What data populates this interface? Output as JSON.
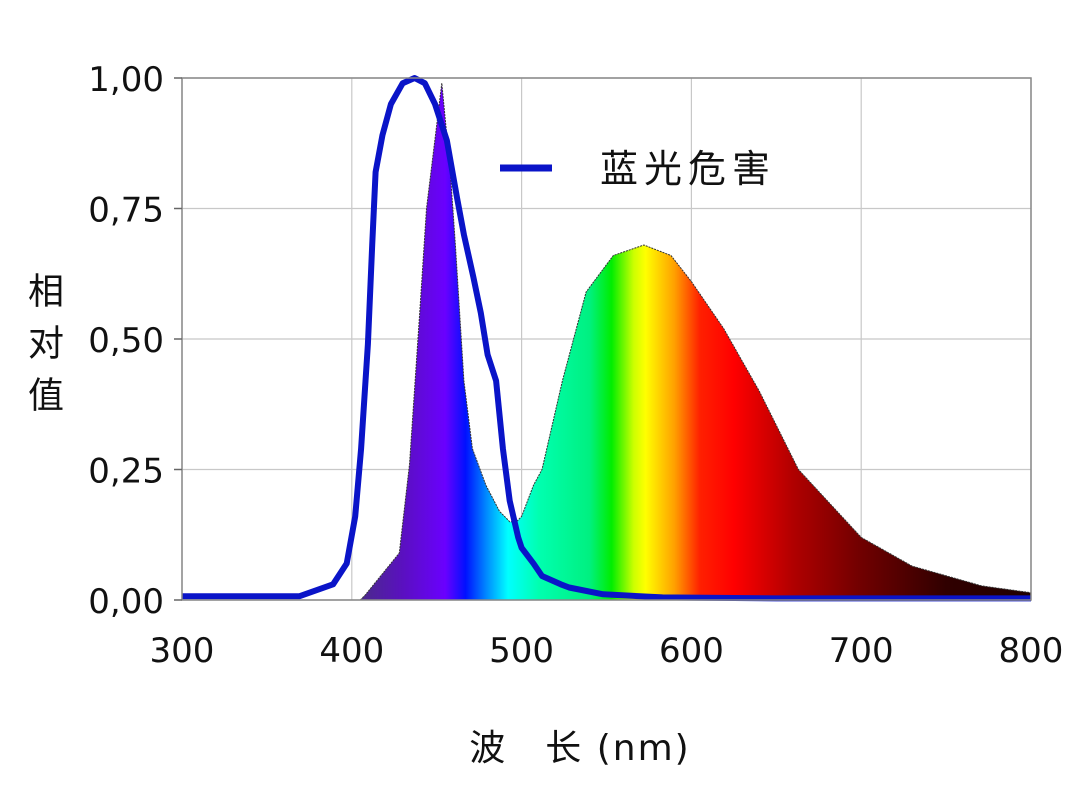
{
  "chart_data": {
    "type": "area",
    "title": "",
    "xlabel": "波　长 (nm)",
    "ylabel": "相对值",
    "xlim": [
      300,
      800
    ],
    "ylim": [
      0,
      1
    ],
    "grid": true,
    "x_ticks": [
      "300",
      "400",
      "500",
      "600",
      "700",
      "800"
    ],
    "x_tick_values": [
      300,
      400,
      500,
      600,
      700,
      800
    ],
    "y_ticks": [
      "0,00",
      "0,25",
      "0,50",
      "0,75",
      "1,00"
    ],
    "y_tick_values": [
      0,
      0.25,
      0.5,
      0.75,
      1.0
    ],
    "legend_position": "top-right",
    "series": [
      {
        "name": "蓝光危害",
        "type": "line",
        "color": "#0a14c8",
        "x": [
          300,
          369,
          389,
          397,
          402,
          405.5,
          409.5,
          412,
          414,
          418,
          423,
          430,
          437,
          443,
          449,
          456,
          462,
          466,
          471.5,
          476,
          480,
          485,
          489,
          493,
          498,
          500,
          507,
          512,
          523,
          528,
          548,
          583,
          650,
          800
        ],
        "y": [
          0.007,
          0.007,
          0.03,
          0.07,
          0.16,
          0.29,
          0.49,
          0.68,
          0.82,
          0.89,
          0.95,
          0.99,
          1.0,
          0.99,
          0.95,
          0.88,
          0.77,
          0.7,
          0.62,
          0.55,
          0.47,
          0.42,
          0.29,
          0.19,
          0.12,
          0.1,
          0.07,
          0.046,
          0.03,
          0.024,
          0.011,
          0.005,
          0.003,
          0.003
        ]
      },
      {
        "type": "area",
        "x": [
          405,
          408,
          428,
          434,
          440,
          444,
          450,
          453,
          458,
          461,
          466,
          471,
          479,
          487,
          493,
          497,
          500,
          507,
          512,
          524,
          538,
          554,
          572,
          588,
          600,
          619,
          640,
          663,
          700,
          730,
          771,
          800
        ],
        "y": [
          0,
          0.01,
          0.09,
          0.26,
          0.55,
          0.75,
          0.91,
          0.99,
          0.82,
          0.68,
          0.42,
          0.29,
          0.22,
          0.17,
          0.15,
          0.15,
          0.16,
          0.22,
          0.25,
          0.42,
          0.59,
          0.66,
          0.68,
          0.66,
          0.61,
          0.52,
          0.4,
          0.25,
          0.12,
          0.065,
          0.027,
          0.014
        ]
      }
    ]
  }
}
